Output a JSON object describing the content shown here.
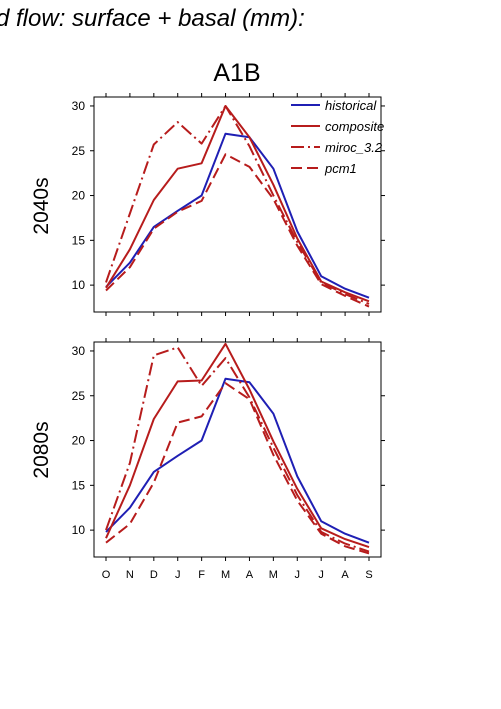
{
  "figure": {
    "suptitle": "d flow: surface + basal (mm):",
    "panel_title": "A1B"
  },
  "legend": [
    {
      "name": "historical",
      "color": "#1f1fb4",
      "dash": "solid"
    },
    {
      "name": "composite",
      "color": "#b71c1c",
      "dash": "solid"
    },
    {
      "name": "miroc_3.2",
      "color": "#b71c1c",
      "dash": "dashdot"
    },
    {
      "name": "pcm1",
      "color": "#b71c1c",
      "dash": "dashed"
    }
  ],
  "chart_data": [
    {
      "type": "line",
      "title": "A1B",
      "row_label": "2040s",
      "categories": [
        "O",
        "N",
        "D",
        "J",
        "F",
        "M",
        "A",
        "M",
        "J",
        "J",
        "A",
        "S"
      ],
      "ylim": [
        7,
        31
      ],
      "yticks": [
        10,
        15,
        20,
        25,
        30
      ],
      "grid": false,
      "legend_position": "top-right",
      "series": [
        {
          "name": "historical",
          "values": [
            9.8,
            12.5,
            16.5,
            18.3,
            20.0,
            26.9,
            26.5,
            23.0,
            16.0,
            11.0,
            9.6,
            8.6
          ]
        },
        {
          "name": "composite",
          "values": [
            9.7,
            14.0,
            19.5,
            23.0,
            23.6,
            30.0,
            26.5,
            21.2,
            15.2,
            10.4,
            9.2,
            8.2
          ]
        },
        {
          "name": "miroc_3.2",
          "values": [
            10.3,
            18.0,
            25.7,
            28.2,
            25.8,
            30.0,
            25.5,
            20.0,
            14.8,
            10.3,
            9.0,
            7.9
          ]
        },
        {
          "name": "pcm1",
          "values": [
            9.4,
            12.0,
            16.3,
            18.2,
            19.4,
            24.6,
            23.2,
            19.6,
            14.4,
            10.1,
            8.8,
            7.6
          ]
        }
      ]
    },
    {
      "type": "line",
      "row_label": "2080s",
      "categories": [
        "O",
        "N",
        "D",
        "J",
        "F",
        "M",
        "A",
        "M",
        "J",
        "J",
        "A",
        "S"
      ],
      "ylim": [
        7,
        31
      ],
      "yticks": [
        10,
        15,
        20,
        25,
        30
      ],
      "grid": false,
      "series": [
        {
          "name": "historical",
          "values": [
            9.8,
            12.5,
            16.5,
            18.3,
            20.0,
            26.9,
            26.5,
            23.0,
            16.0,
            11.0,
            9.6,
            8.6
          ]
        },
        {
          "name": "composite",
          "values": [
            9.1,
            15.0,
            22.4,
            26.6,
            26.7,
            30.8,
            25.7,
            19.9,
            14.6,
            10.2,
            9.0,
            8.1
          ]
        },
        {
          "name": "miroc_3.2",
          "values": [
            10.0,
            17.5,
            29.5,
            30.4,
            26.1,
            29.2,
            24.8,
            19.2,
            13.9,
            9.8,
            8.5,
            7.6
          ]
        },
        {
          "name": "pcm1",
          "values": [
            8.6,
            10.7,
            15.3,
            22.0,
            22.7,
            26.4,
            24.6,
            18.4,
            13.3,
            9.6,
            8.2,
            7.4
          ]
        }
      ]
    }
  ]
}
